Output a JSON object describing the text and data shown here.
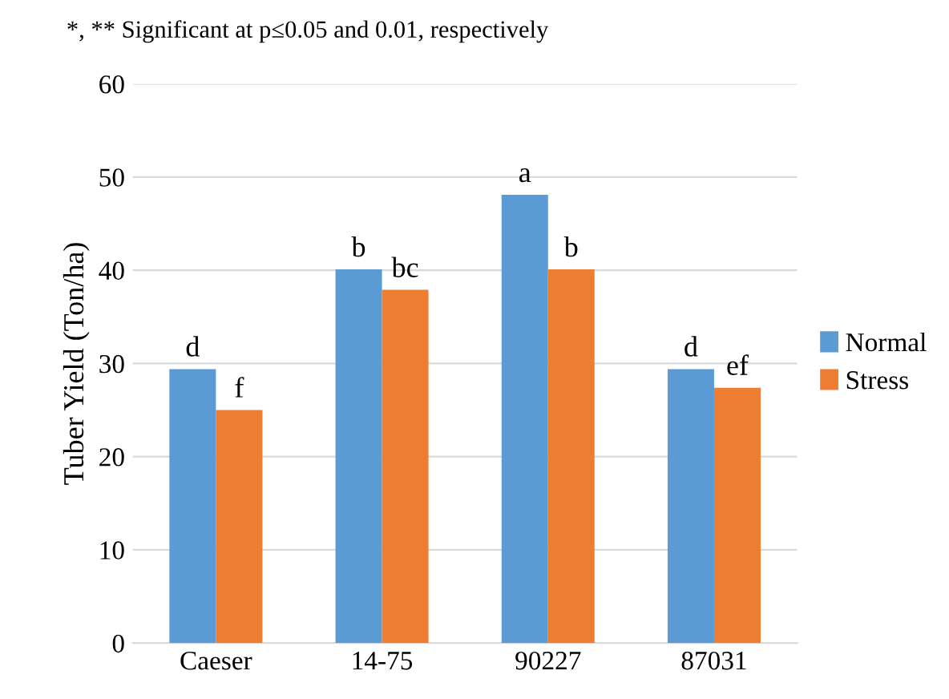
{
  "chart_data": {
    "type": "bar",
    "ylabel": "Tuber Yield (Ton/ha)",
    "annotations": [
      "*, ** Significant at p≤0.05 and 0.01, respectively"
    ],
    "categories": [
      "Caeser",
      "14-75",
      "90227",
      "87031"
    ],
    "series": [
      {
        "name": "Normal",
        "color": "#5b9bd5",
        "values": [
          29.4,
          40.1,
          48.1,
          29.4
        ],
        "value_labels": [
          "d",
          "b",
          "a",
          "d"
        ]
      },
      {
        "name": "Stress",
        "color": "#ed7d31",
        "values": [
          25.0,
          37.9,
          40.1,
          27.4
        ],
        "value_labels": [
          "f",
          "bc",
          "b",
          "ef"
        ]
      }
    ],
    "ylim": [
      0,
      60
    ],
    "yticks": [
      0,
      10,
      20,
      30,
      40,
      50,
      60
    ],
    "grid": "y",
    "legend": "right"
  }
}
